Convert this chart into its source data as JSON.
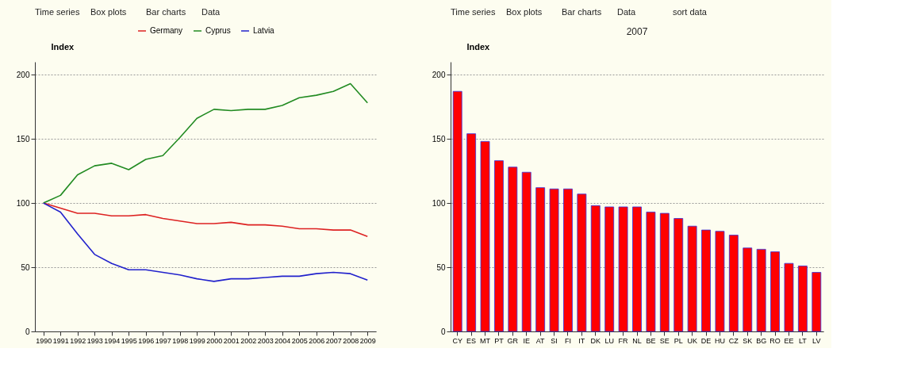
{
  "chart_data": [
    {
      "type": "line",
      "ylabel": "Index",
      "categories": [
        "1990",
        "1991",
        "1992",
        "1993",
        "1994",
        "1995",
        "1996",
        "1997",
        "1998",
        "1999",
        "2000",
        "2001",
        "2002",
        "2003",
        "2004",
        "2005",
        "2006",
        "2007",
        "2008",
        "2009"
      ],
      "series": [
        {
          "name": "Germany",
          "color": "#dd2222",
          "values": [
            100,
            96,
            92,
            92,
            90,
            90,
            91,
            88,
            86,
            84,
            84,
            85,
            83,
            83,
            82,
            80,
            80,
            79,
            79,
            74
          ]
        },
        {
          "name": "Cyprus",
          "color": "#228b22",
          "values": [
            100,
            106,
            122,
            129,
            131,
            126,
            134,
            137,
            151,
            166,
            173,
            172,
            173,
            173,
            176,
            182,
            184,
            187,
            193,
            178
          ]
        },
        {
          "name": "Latvia",
          "color": "#2222cc",
          "values": [
            100,
            93,
            76,
            60,
            53,
            48,
            48,
            46,
            44,
            41,
            39,
            41,
            41,
            42,
            43,
            43,
            45,
            46,
            45,
            40
          ]
        }
      ],
      "ylim": [
        0,
        210
      ],
      "yticks": [
        0,
        50,
        100,
        150,
        200
      ],
      "grid": "y",
      "legend": "top",
      "annotations": [
        "Time series",
        "Box plots",
        "Bar charts",
        "Data"
      ]
    },
    {
      "type": "bar",
      "subtitle": "2007",
      "ylabel": "Index",
      "categories": [
        "CY",
        "ES",
        "MT",
        "PT",
        "GR",
        "IE",
        "AT",
        "SI",
        "FI",
        "IT",
        "DK",
        "LU",
        "FR",
        "NL",
        "BE",
        "SE",
        "PL",
        "UK",
        "DE",
        "HU",
        "CZ",
        "SK",
        "BG",
        "RO",
        "EE",
        "LT",
        "LV"
      ],
      "values": [
        187,
        154,
        148,
        133,
        128,
        124,
        112,
        111,
        111,
        107,
        98,
        97,
        97,
        97,
        93,
        92,
        88,
        82,
        79,
        78,
        75,
        65,
        64,
        62,
        53,
        51,
        46
      ],
      "color": "#ff0000",
      "ylim": [
        0,
        210
      ],
      "yticks": [
        0,
        50,
        100,
        150,
        200
      ],
      "grid": "y",
      "annotations": [
        "Time series",
        "Box plots",
        "Bar charts",
        "Data",
        "sort data"
      ]
    }
  ]
}
